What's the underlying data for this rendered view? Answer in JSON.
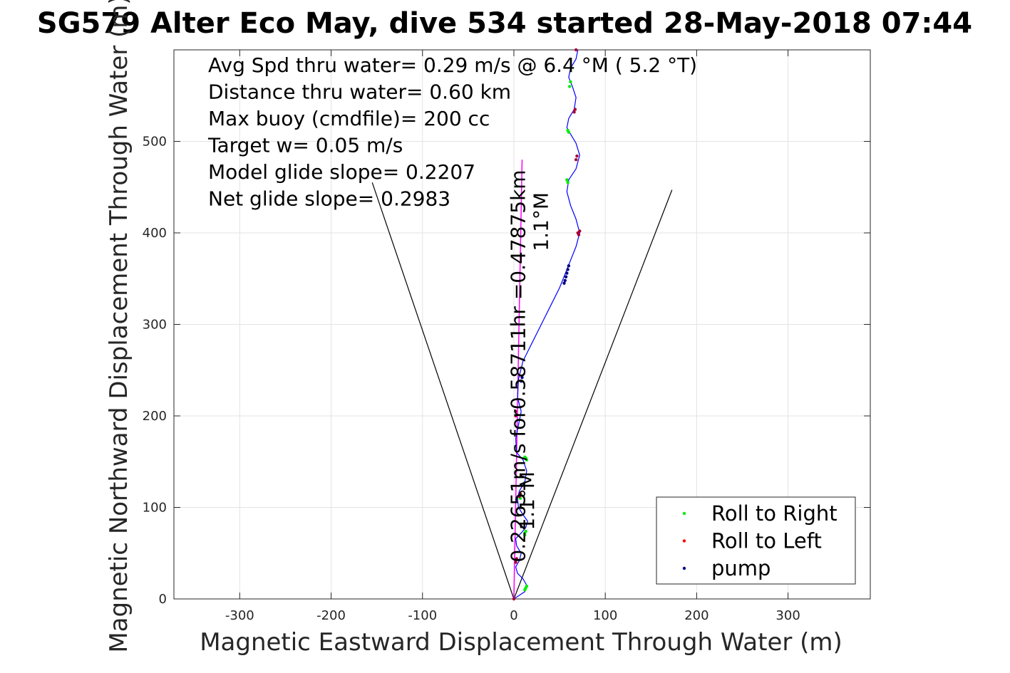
{
  "chart_data": {
    "type": "line",
    "title": "SG579 Alter Eco May, dive 534 started 28-May-2018 07:44",
    "xlabel": "Magnetic Eastward Displacement Through Water (m)",
    "ylabel": "Magnetic Northward Displacement Through Water (m)",
    "xlim": [
      -372,
      390
    ],
    "ylim": [
      0,
      600
    ],
    "xticks": [
      -300,
      -200,
      -100,
      0,
      100,
      200,
      300
    ],
    "yticks": [
      0,
      100,
      200,
      300,
      400,
      500
    ],
    "grid": true,
    "legend_position": "bottom-right",
    "annotations": [
      "Avg Spd thru water=  0.29 m/s @   6.4 °M (  5.2 °T)",
      "Distance thru water=  0.60 km",
      "Max buoy (cmdfile)= 200 cc",
      "Target w= 0.05 m/s",
      "Model glide slope= 0.2207",
      "Net glide slope= 0.2983"
    ],
    "rotated_labels": [
      {
        "text": "0.22651m/s for0.58711hr =0.47875km",
        "x": 12,
        "y": 40
      },
      {
        "text": "1.1°M",
        "x": 22,
        "y": 75
      },
      {
        "text": "1.1°M",
        "x": 37,
        "y": 380
      }
    ],
    "wedge_lines": [
      {
        "name": "left-wedge",
        "x": [
          0,
          -155
        ],
        "y": [
          0,
          455
        ]
      },
      {
        "name": "right-wedge",
        "x": [
          0,
          173
        ],
        "y": [
          0,
          447
        ]
      }
    ],
    "current_line": {
      "name": "current-vector",
      "color": "#ff00ff",
      "x": [
        0,
        9
      ],
      "y": [
        0,
        480
      ]
    },
    "track": {
      "name": "glider-track",
      "color": "#0000ff",
      "x": [
        0,
        12,
        14,
        10,
        4,
        2,
        6,
        8,
        3,
        2,
        8,
        13,
        15,
        10,
        5,
        4,
        6,
        12,
        14,
        10,
        3,
        2,
        5,
        8,
        4,
        5,
        10,
        20,
        30,
        40,
        50,
        56,
        62,
        68,
        72,
        68,
        62,
        58,
        60,
        68,
        72,
        68,
        62,
        58,
        60,
        66,
        68,
        64,
        60,
        62,
        68,
        70
      ],
      "y": [
        0,
        8,
        15,
        22,
        28,
        35,
        42,
        50,
        58,
        66,
        72,
        78,
        85,
        92,
        100,
        110,
        118,
        128,
        140,
        152,
        160,
        175,
        190,
        205,
        220,
        240,
        260,
        280,
        300,
        320,
        340,
        355,
        370,
        385,
        400,
        415,
        430,
        445,
        458,
        470,
        485,
        498,
        508,
        515,
        525,
        535,
        548,
        560,
        570,
        580,
        590,
        600
      ]
    },
    "series": [
      {
        "name": "Roll to Right",
        "color": "#00ee00",
        "x": [
          12,
          13,
          14,
          12,
          12,
          13,
          14,
          12,
          13,
          7,
          59,
          58,
          60,
          59,
          61,
          62
        ],
        "y": [
          10,
          12,
          14,
          70,
          72,
          74,
          152,
          155,
          154,
          110,
          455,
          458,
          510,
          512,
          560,
          565
        ]
      },
      {
        "name": "Roll to Left",
        "color": "#ff0000",
        "x": [
          0,
          2,
          3,
          6,
          7,
          2,
          2,
          70,
          72,
          71,
          68,
          69,
          67,
          66,
          68
        ],
        "y": [
          0,
          40,
          44,
          112,
          115,
          205,
          200,
          400,
          402,
          398,
          480,
          484,
          535,
          532,
          600
        ],
        "marker_color": "#aa0033"
      },
      {
        "name": "pump",
        "color": "#000080",
        "x": [
          55,
          56,
          57,
          58,
          59,
          60,
          8,
          9
        ],
        "y": [
          345,
          348,
          352,
          356,
          360,
          364,
          238,
          242
        ]
      }
    ]
  }
}
